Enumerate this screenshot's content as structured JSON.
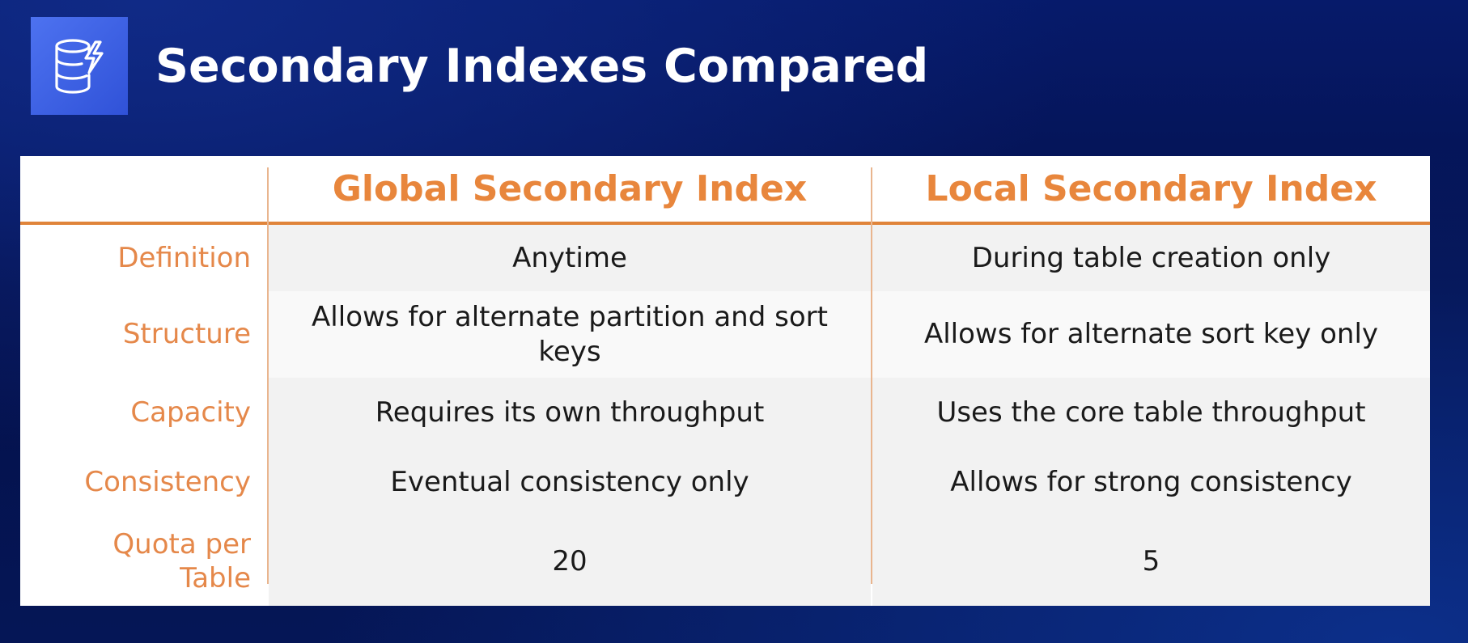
{
  "slide": {
    "title": "Secondary Indexes Compared",
    "logo": "dynamodb-icon"
  },
  "table": {
    "columns": [
      "",
      "Global Secondary Index",
      "Local Secondary Index"
    ],
    "rows": [
      {
        "label": "Definition",
        "gsi": "Anytime",
        "lsi": "During table creation only"
      },
      {
        "label": "Structure",
        "gsi": "Allows for alternate partition and sort keys",
        "lsi": "Allows for alternate sort key only"
      },
      {
        "label": "Capacity",
        "gsi": "Requires its own throughput",
        "lsi": "Uses the core table throughput"
      },
      {
        "label": "Consistency",
        "gsi": "Eventual consistency only",
        "lsi": "Allows for strong consistency"
      },
      {
        "label": "Quota per Table",
        "gsi": "20",
        "lsi": "5"
      }
    ]
  },
  "colors": {
    "accent": "#e8863c",
    "background": "#061a6a",
    "logo": "#3f63e6"
  }
}
